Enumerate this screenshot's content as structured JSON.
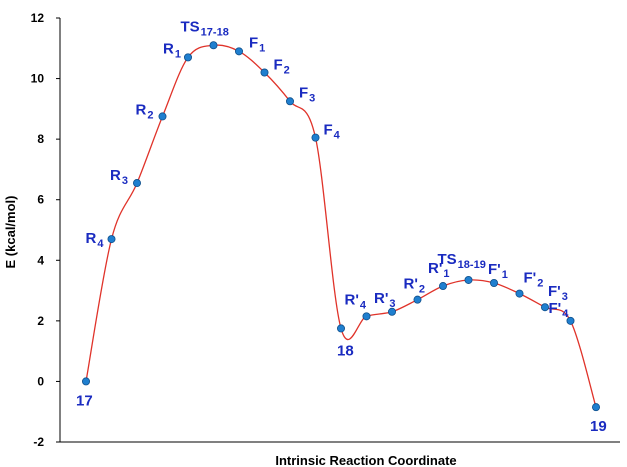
{
  "chart_data": {
    "type": "line",
    "xlabel": "Intrinsic Reaction Coordinate",
    "ylabel": "E (kcal/mol)",
    "ylim": [
      -2,
      12
    ],
    "yticks": [
      "-2",
      "0",
      "2",
      "4",
      "6",
      "8",
      "10",
      "12"
    ],
    "grid": false,
    "colors": {
      "line": "#e0332a",
      "marker": "#1f7fcf",
      "marker_edge": "#0e4e8a",
      "label": "#1a2bc0"
    },
    "points": [
      {
        "label": "17",
        "x": 1,
        "y": 0.0
      },
      {
        "label": "R",
        "sub": "4",
        "x": 2,
        "y": 4.7
      },
      {
        "label": "R",
        "sub": "3",
        "x": 3,
        "y": 6.55
      },
      {
        "label": "R",
        "sub": "2",
        "x": 4,
        "y": 8.75
      },
      {
        "label": "R",
        "sub": "1",
        "x": 5,
        "y": 10.7
      },
      {
        "label": "TS",
        "sub": "17-18",
        "x": 6,
        "y": 11.1
      },
      {
        "label": "F",
        "sub": "1",
        "x": 7,
        "y": 10.9
      },
      {
        "label": "F",
        "sub": "2",
        "x": 8,
        "y": 10.2
      },
      {
        "label": "F",
        "sub": "3",
        "x": 9,
        "y": 9.25
      },
      {
        "label": "F",
        "sub": "4",
        "x": 10,
        "y": 8.05
      },
      {
        "label": "18",
        "x": 11,
        "y": 1.75
      },
      {
        "label": "R'",
        "sub": "4",
        "x": 12,
        "y": 2.15
      },
      {
        "label": "R'",
        "sub": "3",
        "x": 13,
        "y": 2.3
      },
      {
        "label": "R'",
        "sub": "2",
        "x": 14,
        "y": 2.7
      },
      {
        "label": "R'",
        "sub": "1",
        "x": 15,
        "y": 3.15
      },
      {
        "label": "TS",
        "sub": "18-19",
        "x": 16,
        "y": 3.35
      },
      {
        "label": "F'",
        "sub": "1",
        "x": 17,
        "y": 3.25
      },
      {
        "label": "F'",
        "sub": "2",
        "x": 18,
        "y": 2.9
      },
      {
        "label": "F'",
        "sub": "3",
        "x": 19,
        "y": 2.45
      },
      {
        "label": "F'",
        "sub": "4",
        "x": 20,
        "y": 2.0
      },
      {
        "label": "19",
        "x": 21,
        "y": -0.85
      }
    ]
  }
}
